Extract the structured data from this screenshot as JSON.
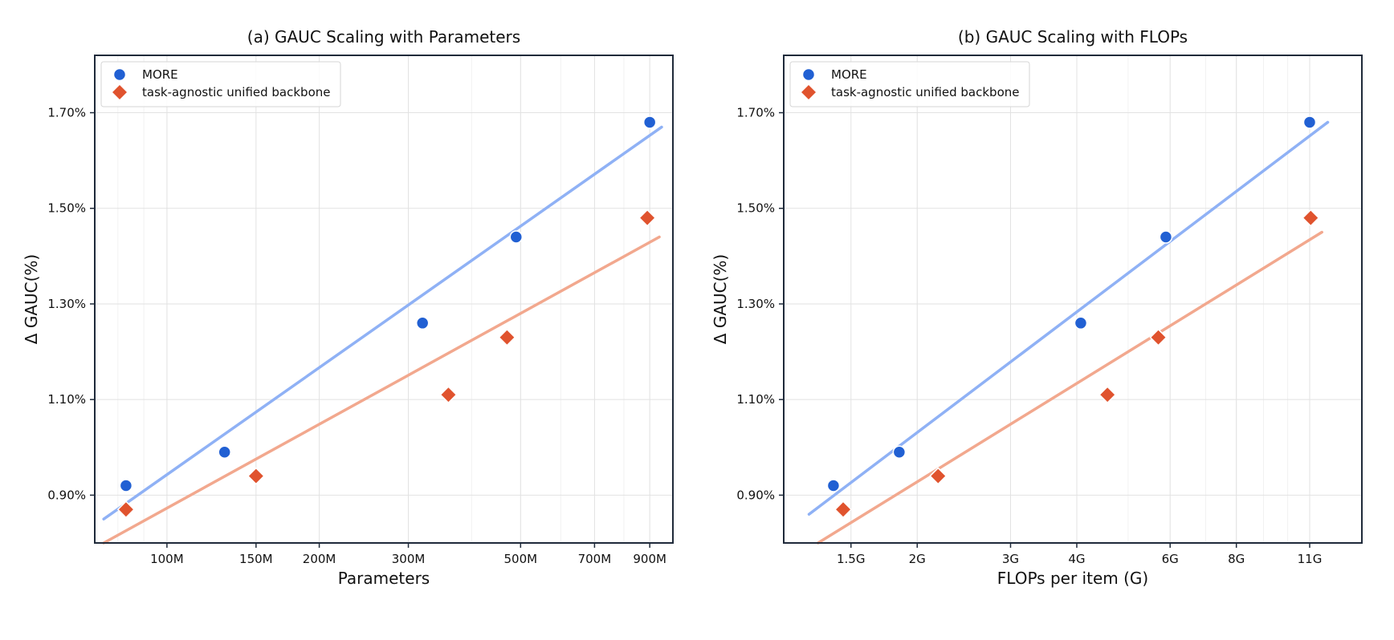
{
  "chart_data": [
    {
      "type": "scatter",
      "title": "(a) GAUC Scaling with Parameters",
      "xlabel": "Parameters",
      "ylabel": "Δ GAUC(%)",
      "xscale": "log",
      "xlim": [
        72,
        1000
      ],
      "ylim": [
        0.8,
        1.82
      ],
      "xticks": [
        {
          "value": 100,
          "label": "100M"
        },
        {
          "value": 150,
          "label": "150M"
        },
        {
          "value": 200,
          "label": "200M"
        },
        {
          "value": 300,
          "label": "300M"
        },
        {
          "value": 500,
          "label": "500M"
        },
        {
          "value": 700,
          "label": "700M"
        },
        {
          "value": 900,
          "label": "900M"
        }
      ],
      "yticks": [
        {
          "value": 0.9,
          "label": "0.90%"
        },
        {
          "value": 1.1,
          "label": "1.10%"
        },
        {
          "value": 1.3,
          "label": "1.30%"
        },
        {
          "value": 1.5,
          "label": "1.50%"
        },
        {
          "value": 1.7,
          "label": "1.70%"
        }
      ],
      "grid": true,
      "legend_position": "top-left",
      "series": [
        {
          "name": "MORE",
          "marker": "circle",
          "color": "#2160D3",
          "fit_color": "#8FB1F5",
          "x": [
            83,
            130,
            320,
            490,
            900
          ],
          "y": [
            0.92,
            0.99,
            1.26,
            1.44,
            1.68
          ],
          "fit": {
            "x": [
              75,
              950
            ],
            "y": [
              0.85,
              1.67
            ]
          }
        },
        {
          "name": "task-agnostic unified backbone",
          "marker": "diamond",
          "color": "#E0532E",
          "fit_color": "#F2A88E",
          "x": [
            83,
            150,
            360,
            470,
            890
          ],
          "y": [
            0.87,
            0.94,
            1.11,
            1.23,
            1.48
          ],
          "fit": {
            "x": [
              75,
              940
            ],
            "y": [
              0.8,
              1.44
            ]
          }
        }
      ]
    },
    {
      "type": "scatter",
      "title": "(b) GAUC Scaling with FLOPs",
      "xlabel": "FLOPs per item (G)",
      "ylabel": "Δ GAUC(%)",
      "xscale": "log",
      "xlim": [
        1.12,
        13.8
      ],
      "ylim": [
        0.8,
        1.82
      ],
      "xticks": [
        {
          "value": 1.5,
          "label": "1.5G"
        },
        {
          "value": 2,
          "label": "2G"
        },
        {
          "value": 3,
          "label": "3G"
        },
        {
          "value": 4,
          "label": "4G"
        },
        {
          "value": 6,
          "label": "6G"
        },
        {
          "value": 8,
          "label": "8G"
        },
        {
          "value": 11,
          "label": "11G"
        }
      ],
      "yticks": [
        {
          "value": 0.9,
          "label": "0.90%"
        },
        {
          "value": 1.1,
          "label": "1.10%"
        },
        {
          "value": 1.3,
          "label": "1.30%"
        },
        {
          "value": 1.5,
          "label": "1.50%"
        },
        {
          "value": 1.7,
          "label": "1.70%"
        }
      ],
      "grid": true,
      "legend_position": "top-left",
      "series": [
        {
          "name": "MORE",
          "marker": "circle",
          "color": "#2160D3",
          "fit_color": "#8FB1F5",
          "x": [
            1.39,
            1.85,
            4.07,
            5.89,
            11.0
          ],
          "y": [
            0.92,
            0.99,
            1.26,
            1.44,
            1.68
          ],
          "fit": {
            "x": [
              1.25,
              11.9
            ],
            "y": [
              0.86,
              1.68
            ]
          }
        },
        {
          "name": "task-agnostic unified backbone",
          "marker": "diamond",
          "color": "#E0532E",
          "fit_color": "#F2A88E",
          "x": [
            1.45,
            2.19,
            4.57,
            5.7,
            11.05
          ],
          "y": [
            0.87,
            0.94,
            1.11,
            1.23,
            1.48
          ],
          "fit": {
            "x": [
              1.3,
              11.6
            ],
            "y": [
              0.8,
              1.45
            ]
          }
        }
      ]
    }
  ]
}
